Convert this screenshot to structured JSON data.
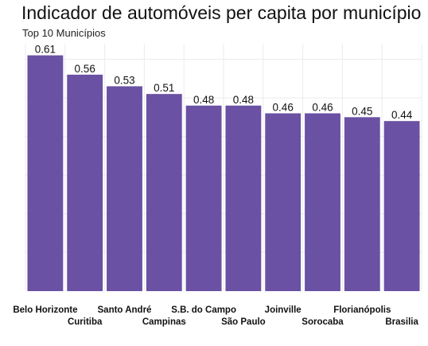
{
  "chart_data": {
    "type": "bar",
    "title": "Indicador de automóveis per capita por município",
    "subtitle": "Top 10 Municípios",
    "xlabel": "",
    "ylabel": "",
    "categories": [
      "Belo Horizonte",
      "Curitiba",
      "Santo André",
      "Campinas",
      "S.B. do Campo",
      "São Paulo",
      "Joinville",
      "Sorocaba",
      "Florianópolis",
      "Brasilia"
    ],
    "values": [
      0.61,
      0.56,
      0.53,
      0.51,
      0.48,
      0.48,
      0.46,
      0.46,
      0.45,
      0.44
    ],
    "value_labels": [
      "0.61",
      "0.56",
      "0.53",
      "0.51",
      "0.48",
      "0.48",
      "0.46",
      "0.46",
      "0.45",
      "0.44"
    ],
    "ylim": [
      0,
      0.64
    ],
    "grid": true,
    "legend": "none",
    "bar_color": "#6a51a3"
  }
}
